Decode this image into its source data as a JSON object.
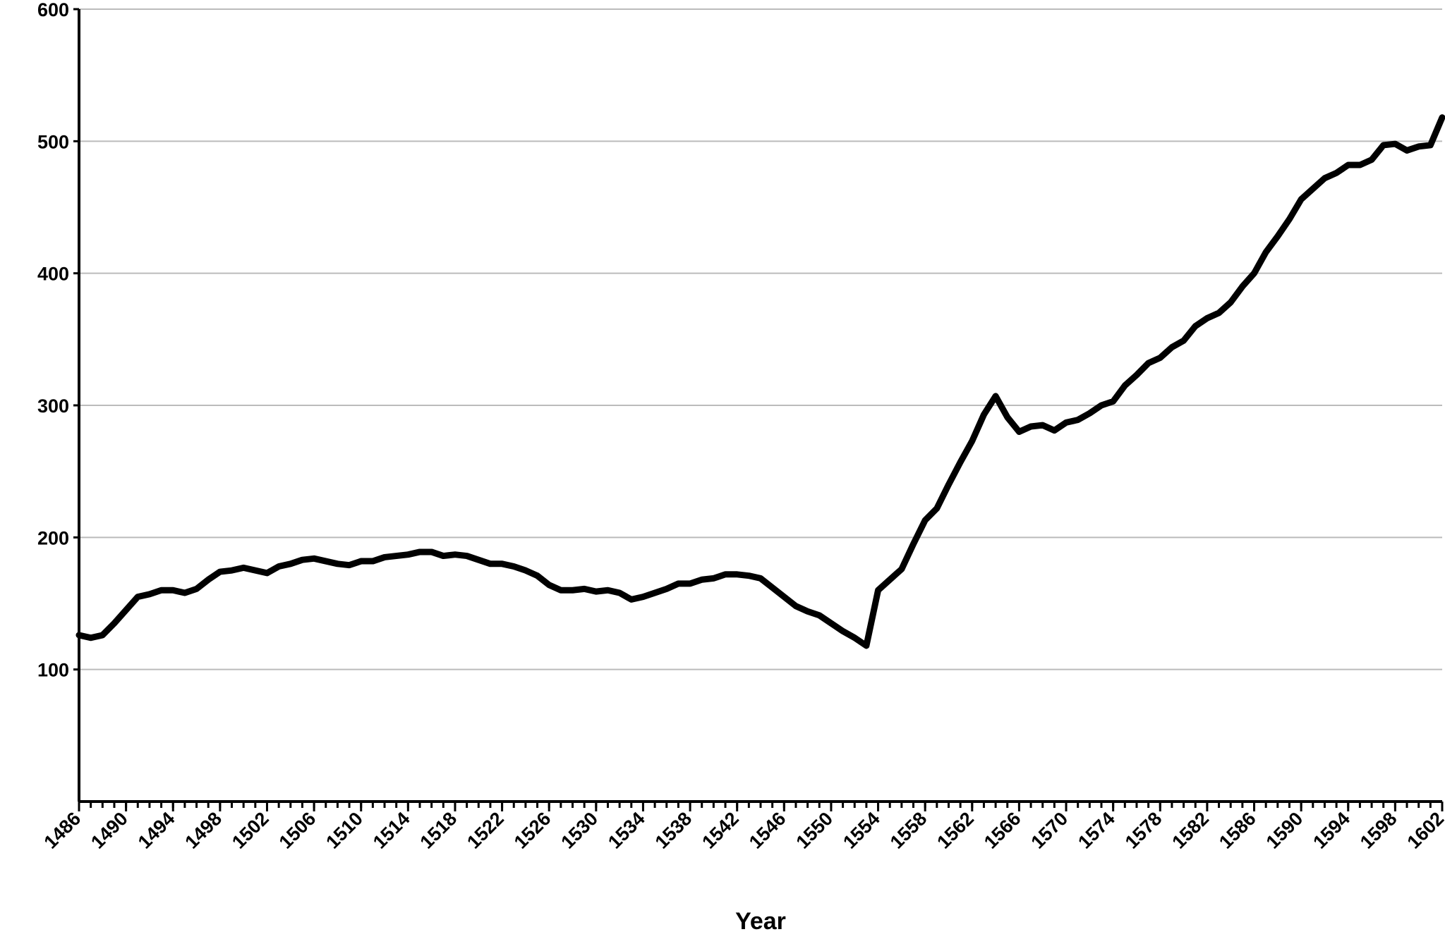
{
  "chart_data": {
    "type": "line",
    "x_label": "Year",
    "x": [
      1486,
      1487,
      1488,
      1489,
      1490,
      1491,
      1492,
      1493,
      1494,
      1495,
      1496,
      1497,
      1498,
      1499,
      1500,
      1501,
      1502,
      1503,
      1504,
      1505,
      1506,
      1507,
      1508,
      1509,
      1510,
      1511,
      1512,
      1513,
      1514,
      1515,
      1516,
      1517,
      1518,
      1519,
      1520,
      1521,
      1522,
      1523,
      1524,
      1525,
      1526,
      1527,
      1528,
      1529,
      1530,
      1531,
      1532,
      1533,
      1534,
      1535,
      1536,
      1537,
      1538,
      1539,
      1540,
      1541,
      1542,
      1543,
      1544,
      1545,
      1546,
      1547,
      1548,
      1549,
      1550,
      1551,
      1552,
      1553,
      1554,
      1555,
      1556,
      1557,
      1558,
      1559,
      1560,
      1561,
      1562,
      1563,
      1564,
      1565,
      1566,
      1567,
      1568,
      1569,
      1570,
      1571,
      1572,
      1573,
      1574,
      1575,
      1576,
      1577,
      1578,
      1579,
      1580,
      1581,
      1582,
      1583,
      1584,
      1585,
      1586,
      1587,
      1588,
      1589,
      1590,
      1591,
      1592,
      1593,
      1594,
      1595,
      1596,
      1597,
      1598,
      1599,
      1600,
      1601,
      1602
    ],
    "values": [
      126,
      124,
      126,
      135,
      145,
      155,
      157,
      160,
      160,
      158,
      161,
      168,
      174,
      175,
      177,
      175,
      173,
      178,
      180,
      183,
      184,
      182,
      180,
      179,
      182,
      182,
      185,
      186,
      187,
      189,
      189,
      186,
      187,
      186,
      183,
      180,
      180,
      178,
      175,
      171,
      164,
      160,
      160,
      161,
      159,
      160,
      158,
      153,
      155,
      158,
      161,
      165,
      165,
      168,
      169,
      172,
      172,
      171,
      169,
      162,
      155,
      148,
      144,
      141,
      135,
      129,
      124,
      118,
      160,
      168,
      176,
      195,
      213,
      222,
      240,
      257,
      273,
      293,
      307,
      291,
      280,
      284,
      285,
      281,
      287,
      289,
      294,
      300,
      303,
      315,
      323,
      332,
      336,
      344,
      349,
      360,
      366,
      370,
      378,
      390,
      400,
      416,
      428,
      441,
      456,
      464,
      472,
      476,
      482,
      482,
      486,
      497,
      498,
      493,
      496,
      497,
      518
    ],
    "color": "#000000",
    "xlim": [
      1486,
      1602
    ],
    "xticks": [
      1486,
      1490,
      1494,
      1498,
      1502,
      1506,
      1510,
      1514,
      1518,
      1522,
      1526,
      1530,
      1534,
      1538,
      1542,
      1546,
      1550,
      1554,
      1558,
      1562,
      1566,
      1570,
      1574,
      1578,
      1582,
      1586,
      1590,
      1594,
      1598,
      1602
    ],
    "ylim": [
      0,
      600
    ],
    "yticks": [
      100,
      200,
      300,
      400,
      500,
      600
    ],
    "grid": true
  }
}
